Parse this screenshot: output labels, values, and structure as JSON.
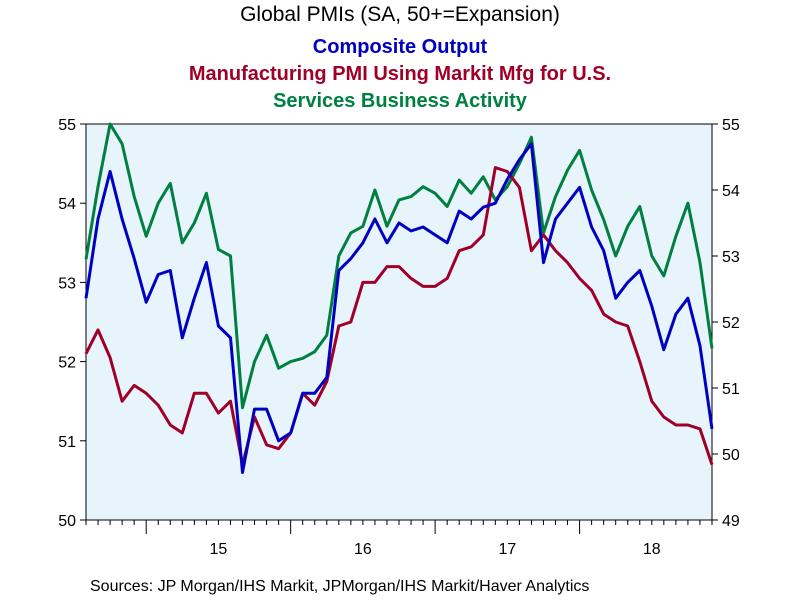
{
  "chart_data": {
    "type": "line",
    "title": "Global PMIs (SA, 50+=Expansion)",
    "ylim": [
      50,
      55
    ],
    "y2lim": [
      49,
      55
    ],
    "yticks": [
      50,
      51,
      52,
      53,
      54,
      55
    ],
    "y2ticks": [
      49,
      50,
      51,
      52,
      53,
      54,
      55
    ],
    "x_start": "2014-08",
    "x_end": "2018-12",
    "xtick_labels": [
      {
        "label": "15",
        "date": "2015-07"
      },
      {
        "label": "16",
        "date": "2016-07"
      },
      {
        "label": "17",
        "date": "2017-07"
      },
      {
        "label": "18",
        "date": "2018-07"
      }
    ],
    "grid": false,
    "legend": "title",
    "background": "#e8f4fc",
    "series": [
      {
        "name": "Composite Output",
        "color": "#0000c0",
        "axis": "left",
        "x": [
          "2014-08",
          "2014-09",
          "2014-10",
          "2014-11",
          "2014-12",
          "2015-01",
          "2015-02",
          "2015-03",
          "2015-04",
          "2015-05",
          "2015-06",
          "2015-07",
          "2015-08",
          "2015-09",
          "2015-10",
          "2015-11",
          "2015-12",
          "2016-01",
          "2016-02",
          "2016-03",
          "2016-04",
          "2016-05",
          "2016-06",
          "2016-07",
          "2016-08",
          "2016-09",
          "2016-10",
          "2016-11",
          "2016-12",
          "2017-01",
          "2017-02",
          "2017-03",
          "2017-04",
          "2017-05",
          "2017-06",
          "2017-07",
          "2017-08",
          "2017-09",
          "2017-10",
          "2017-11",
          "2017-12",
          "2018-01",
          "2018-02",
          "2018-03",
          "2018-04",
          "2018-05",
          "2018-06",
          "2018-07",
          "2018-08",
          "2018-09",
          "2018-10",
          "2018-11",
          "2018-12"
        ],
        "values": [
          52.8,
          53.8,
          54.4,
          53.8,
          53.3,
          52.75,
          53.1,
          53.15,
          52.3,
          52.8,
          53.25,
          52.45,
          52.3,
          50.6,
          51.4,
          51.4,
          51.0,
          51.1,
          51.6,
          51.6,
          51.8,
          53.15,
          53.3,
          53.5,
          53.8,
          53.5,
          53.75,
          53.65,
          53.7,
          53.6,
          53.5,
          53.9,
          53.8,
          53.95,
          54.0,
          54.3,
          54.55,
          54.75,
          53.25,
          53.8,
          54.0,
          54.2,
          53.7,
          53.4,
          52.8,
          53.0,
          53.15,
          52.7,
          52.15,
          52.6,
          52.8,
          52.2,
          51.15
        ]
      },
      {
        "name": "Manufacturing PMI Using Markit Mfg for U.S.",
        "color": "#a00028",
        "axis": "left",
        "x": [
          "2014-08",
          "2014-09",
          "2014-10",
          "2014-11",
          "2014-12",
          "2015-01",
          "2015-02",
          "2015-03",
          "2015-04",
          "2015-05",
          "2015-06",
          "2015-07",
          "2015-08",
          "2015-09",
          "2015-10",
          "2015-11",
          "2015-12",
          "2016-01",
          "2016-02",
          "2016-03",
          "2016-04",
          "2016-05",
          "2016-06",
          "2016-07",
          "2016-08",
          "2016-09",
          "2016-10",
          "2016-11",
          "2016-12",
          "2017-01",
          "2017-02",
          "2017-03",
          "2017-04",
          "2017-05",
          "2017-06",
          "2017-07",
          "2017-08",
          "2017-09",
          "2017-10",
          "2017-11",
          "2017-12",
          "2018-01",
          "2018-02",
          "2018-03",
          "2018-04",
          "2018-05",
          "2018-06",
          "2018-07",
          "2018-08",
          "2018-09",
          "2018-10",
          "2018-11",
          "2018-12"
        ],
        "values": [
          52.1,
          52.4,
          52.05,
          51.5,
          51.7,
          51.6,
          51.45,
          51.2,
          51.1,
          51.6,
          51.6,
          51.35,
          51.5,
          50.7,
          51.3,
          50.95,
          50.9,
          51.1,
          51.6,
          51.45,
          51.75,
          52.45,
          52.5,
          53.0,
          53.0,
          53.2,
          53.2,
          53.05,
          52.95,
          52.95,
          53.05,
          53.4,
          53.45,
          53.6,
          54.45,
          54.4,
          54.2,
          53.4,
          53.6,
          53.4,
          53.25,
          53.05,
          52.9,
          52.6,
          52.5,
          52.45,
          52.0,
          51.5,
          51.3,
          51.2,
          51.2,
          51.15,
          50.7
        ]
      },
      {
        "name": "Services Business Activity",
        "color": "#008040",
        "axis": "right",
        "x": [
          "2014-08",
          "2014-09",
          "2014-10",
          "2014-11",
          "2014-12",
          "2015-01",
          "2015-02",
          "2015-03",
          "2015-04",
          "2015-05",
          "2015-06",
          "2015-07",
          "2015-08",
          "2015-09",
          "2015-10",
          "2015-11",
          "2015-12",
          "2016-01",
          "2016-02",
          "2016-03",
          "2016-04",
          "2016-05",
          "2016-06",
          "2016-07",
          "2016-08",
          "2016-09",
          "2016-10",
          "2016-11",
          "2016-12",
          "2017-01",
          "2017-02",
          "2017-03",
          "2017-04",
          "2017-05",
          "2017-06",
          "2017-07",
          "2017-08",
          "2017-09",
          "2017-10",
          "2017-11",
          "2017-12",
          "2018-01",
          "2018-02",
          "2018-03",
          "2018-04",
          "2018-05",
          "2018-06",
          "2018-07",
          "2018-08",
          "2018-09",
          "2018-10",
          "2018-11",
          "2018-12"
        ],
        "values": [
          52.95,
          54.05,
          55.0,
          54.7,
          53.9,
          53.3,
          53.8,
          54.1,
          53.2,
          53.5,
          53.95,
          53.1,
          53.0,
          50.7,
          51.4,
          51.8,
          51.3,
          51.4,
          51.45,
          51.55,
          51.8,
          53.0,
          53.35,
          53.45,
          54.0,
          53.45,
          53.85,
          53.9,
          54.05,
          53.95,
          53.75,
          54.15,
          53.95,
          54.2,
          53.85,
          54.05,
          54.4,
          54.8,
          53.35,
          53.9,
          54.3,
          54.6,
          54.0,
          53.55,
          53.0,
          53.45,
          53.75,
          53.0,
          52.7,
          53.3,
          53.8,
          52.9,
          51.6
        ]
      }
    ],
    "source": "Sources:  JP Morgan/IHS Markit, JPMorgan/IHS Markit/Haver Analytics"
  }
}
